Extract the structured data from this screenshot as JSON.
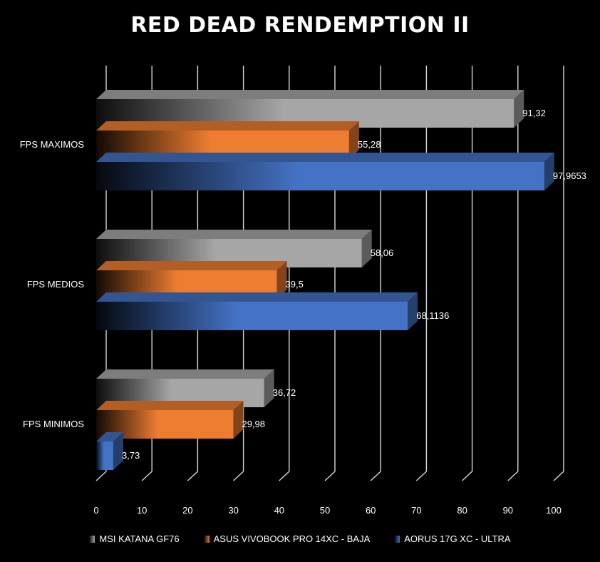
{
  "chart_data": {
    "type": "bar",
    "orientation": "horizontal",
    "style": "3d",
    "title": "RED DEAD RENDEMPTION II",
    "categories": [
      "FPS MAXIMOS",
      "FPS MEDIOS",
      "FPS MINIMOS"
    ],
    "series": [
      {
        "name": "MSI KATANA GF76",
        "color": "#a6a6a6",
        "values": [
          91.32,
          58.06,
          36.72
        ],
        "labels": [
          "91,32",
          "58,06",
          "36,72"
        ]
      },
      {
        "name": "ASUS VIVOBOOK PRO 14XC - BAJA",
        "color": "#ed7d31",
        "values": [
          55.28,
          39.5,
          29.98
        ],
        "labels": [
          "55,28",
          "39,5",
          "29,98"
        ]
      },
      {
        "name": "AORUS 17G XC - ULTRA",
        "color": "#4472c4",
        "values": [
          97.9653,
          68.1136,
          3.73
        ],
        "labels": [
          "97,9653",
          "68,1136",
          "3,73"
        ]
      }
    ],
    "x_ticks": [
      "0",
      "10",
      "20",
      "30",
      "40",
      "50",
      "60",
      "70",
      "80",
      "90",
      "100"
    ],
    "xlim": [
      0,
      100
    ],
    "grid": true,
    "legend_position": "bottom"
  }
}
